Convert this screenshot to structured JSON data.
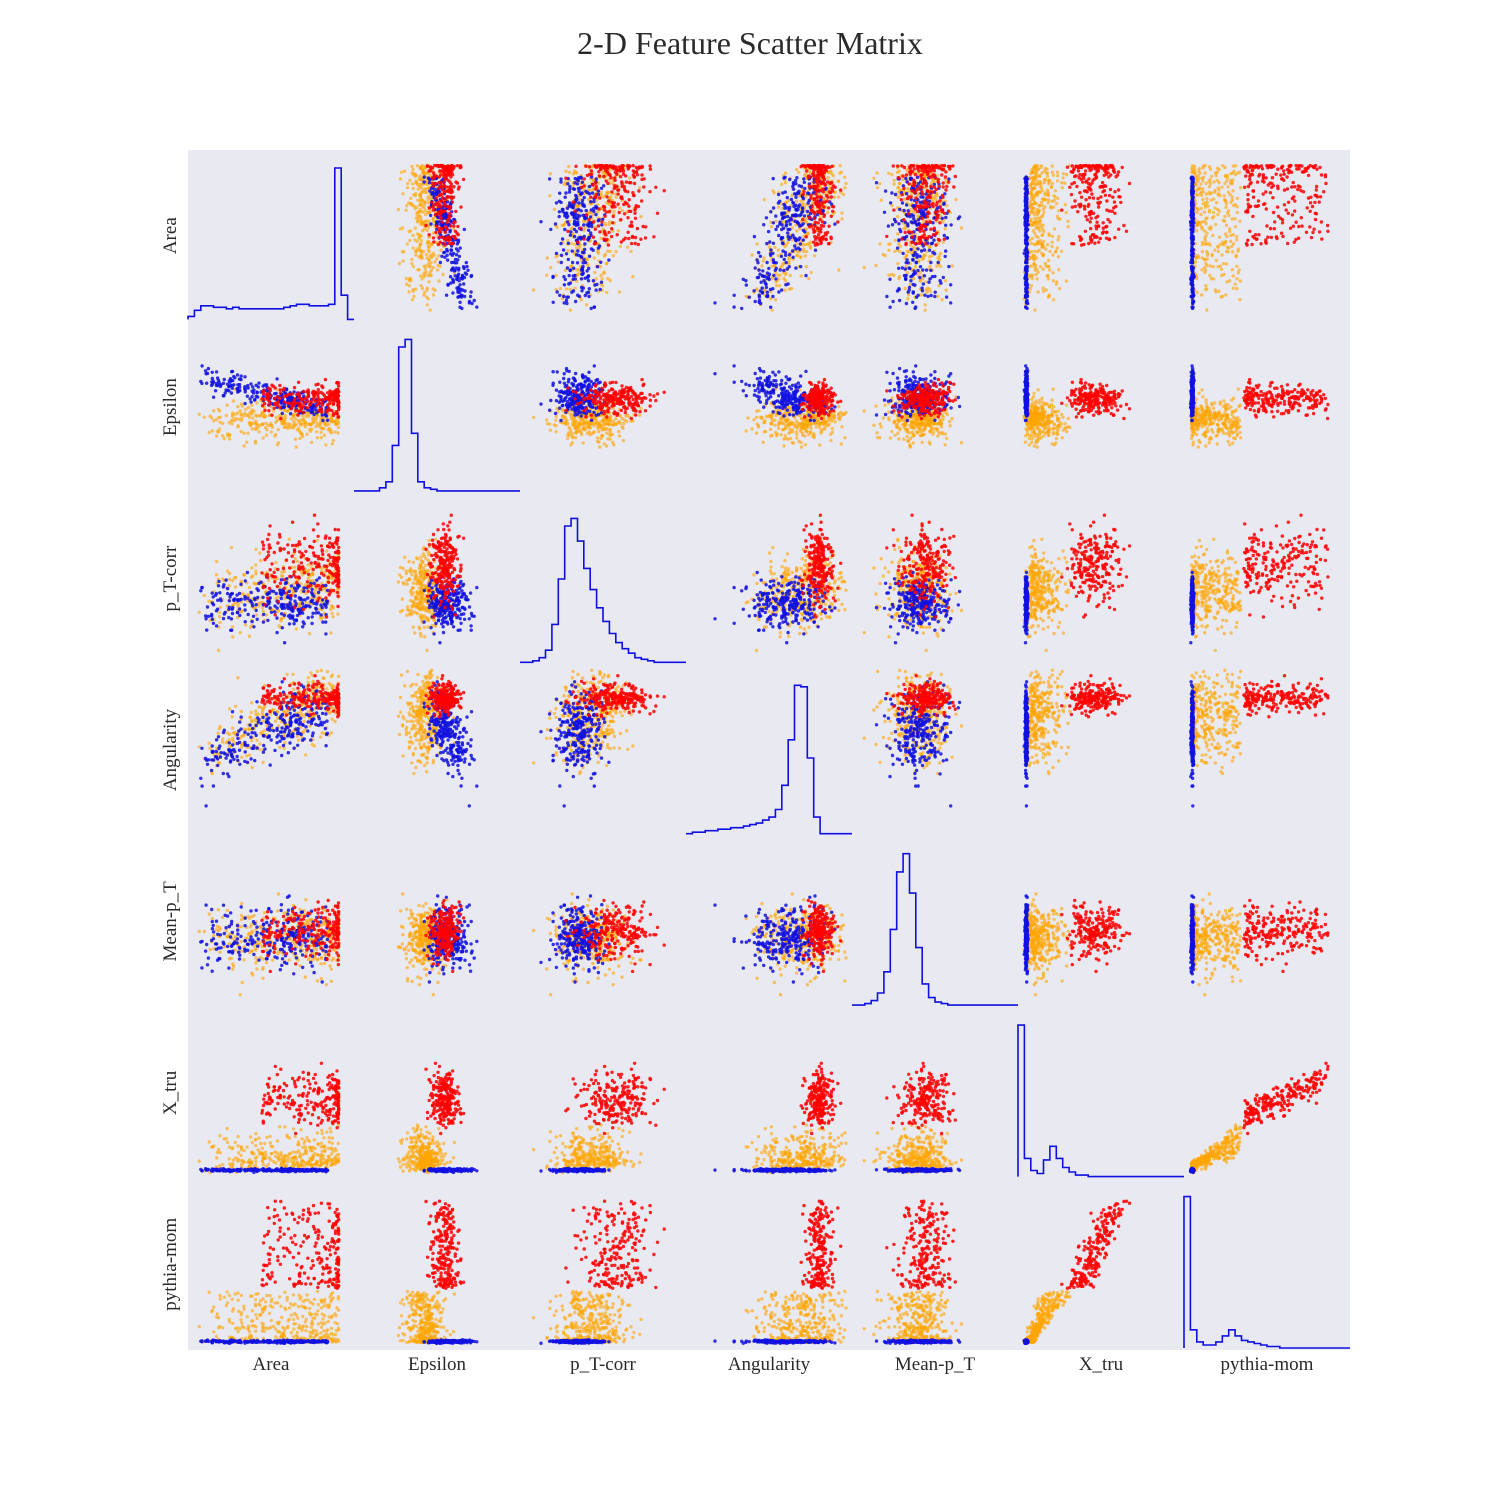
{
  "chart_data": {
    "type": "scatter",
    "title": "2-D Feature Scatter Matrix",
    "features": [
      "Area",
      "Epsilon",
      "p_T-corr",
      "Angularity",
      "Mean-p_T",
      "X_tru",
      "pythia-mom"
    ],
    "x_labels": [
      "Area",
      "Epsilon",
      "p_T-corr",
      "Angularity",
      "Mean-p_T",
      "X_tru",
      "pythia-mom"
    ],
    "y_labels": [
      "Area",
      "Epsilon",
      "p_T-corr",
      "Angularity",
      "Mean-p_T",
      "X_tru",
      "pythia-mom"
    ],
    "diagonal": "histogram",
    "grid": false,
    "legend": "none",
    "colors": {
      "background": "#e9e9f2",
      "class_a": "#1010e0",
      "class_b": "#ffa500",
      "class_c": "#ff0000",
      "histogram": "#1010e0"
    },
    "histograms": {
      "Area": [
        2,
        6,
        9,
        9,
        8,
        8,
        7,
        8,
        7,
        7,
        7,
        7,
        7,
        7,
        7,
        8,
        9,
        10,
        10,
        9,
        9,
        9,
        10,
        100,
        16,
        0
      ],
      "Epsilon": [
        0,
        0,
        0,
        0,
        2,
        6,
        30,
        95,
        100,
        38,
        6,
        2,
        1,
        0,
        0,
        0,
        0,
        0,
        0,
        0,
        0,
        0,
        0,
        0,
        0,
        0
      ],
      "p_T-corr": [
        0,
        0,
        1,
        3,
        8,
        25,
        55,
        90,
        95,
        80,
        62,
        48,
        36,
        27,
        19,
        13,
        9,
        6,
        3,
        2,
        1,
        0,
        0,
        0,
        0,
        0
      ],
      "Angularity": [
        0,
        1,
        1,
        2,
        2,
        3,
        3,
        4,
        4,
        5,
        6,
        7,
        9,
        11,
        16,
        32,
        62,
        98,
        97,
        50,
        11,
        0,
        0,
        0,
        0,
        0
      ],
      "Mean-p_T": [
        0,
        0,
        1,
        3,
        8,
        22,
        50,
        88,
        100,
        74,
        38,
        14,
        5,
        2,
        1,
        0,
        0,
        0,
        0,
        0,
        0,
        0,
        0,
        0,
        0,
        0
      ],
      "X_tru": [
        100,
        12,
        4,
        2,
        11,
        20,
        12,
        6,
        3,
        1,
        1,
        0,
        0,
        0,
        0,
        0,
        0,
        0,
        0,
        0,
        0,
        0,
        0,
        0,
        0,
        0
      ],
      "pythia-mom": [
        100,
        12,
        4,
        2,
        2,
        4,
        8,
        12,
        8,
        5,
        4,
        3,
        2,
        1,
        1,
        0,
        0,
        0,
        0,
        0,
        0,
        0,
        0,
        0,
        0,
        0
      ]
    }
  }
}
